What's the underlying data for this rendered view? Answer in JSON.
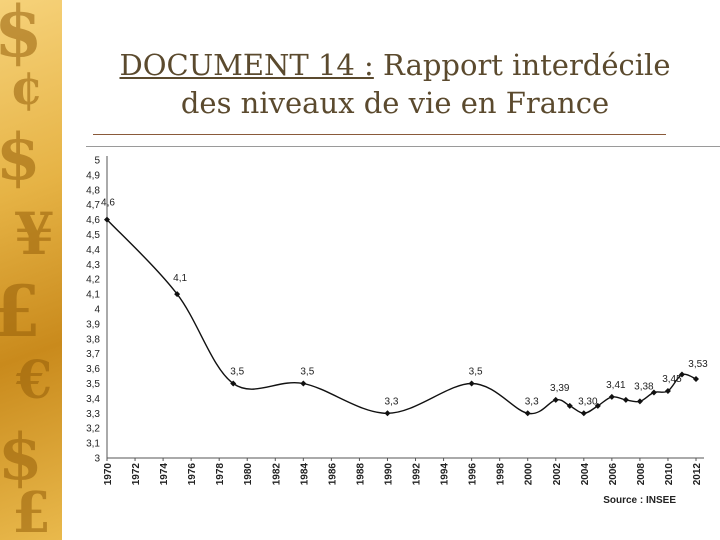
{
  "slide": {
    "title_ref": "DOCUMENT 14 :",
    "title_rest": " Rapport interdécile",
    "title_line2": "des niveaux de vie en France"
  },
  "chart_data": {
    "type": "line",
    "title": "",
    "xlabel": "",
    "ylabel": "",
    "source": "Source : INSEE",
    "ylim": [
      3,
      5
    ],
    "xlim": [
      1970,
      2012
    ],
    "grid": false,
    "yticks": [
      "5",
      "4,9",
      "4,8",
      "4,7",
      "4,6",
      "4,5",
      "4,4",
      "4,3",
      "4,2",
      "4,1",
      "4",
      "3,9",
      "3,8",
      "3,7",
      "3,6",
      "3,5",
      "3,4",
      "3,3",
      "3,2",
      "3,1",
      "3"
    ],
    "xticks": [
      "1970",
      "1972",
      "1974",
      "1976",
      "1978",
      "1980",
      "1982",
      "1984",
      "1986",
      "1988",
      "1990",
      "1992",
      "1994",
      "1996",
      "1998",
      "2000",
      "2002",
      "2004",
      "2006",
      "2008",
      "2010",
      "2012"
    ],
    "series": [
      {
        "points": [
          {
            "x": 1970,
            "y": 4.6
          },
          {
            "x": 1975,
            "y": 4.1
          },
          {
            "x": 1979,
            "y": 3.5
          },
          {
            "x": 1984,
            "y": 3.5
          },
          {
            "x": 1990,
            "y": 3.3
          },
          {
            "x": 1996,
            "y": 3.5
          },
          {
            "x": 2000,
            "y": 3.3
          },
          {
            "x": 2002,
            "y": 3.39
          },
          {
            "x": 2003,
            "y": 3.35
          },
          {
            "x": 2004,
            "y": 3.3
          },
          {
            "x": 2005,
            "y": 3.35
          },
          {
            "x": 2006,
            "y": 3.41
          },
          {
            "x": 2007,
            "y": 3.39
          },
          {
            "x": 2008,
            "y": 3.38
          },
          {
            "x": 2009,
            "y": 3.44
          },
          {
            "x": 2010,
            "y": 3.45
          },
          {
            "x": 2011,
            "y": 3.56
          },
          {
            "x": 2012,
            "y": 3.53
          }
        ]
      }
    ],
    "data_labels": [
      {
        "x": 1970,
        "y": 4.6,
        "text": "4,6"
      },
      {
        "x": 1975,
        "y": 4.1,
        "text": "4,1"
      },
      {
        "x": 1979,
        "y": 3.5,
        "text": "3,5"
      },
      {
        "x": 1984,
        "y": 3.5,
        "text": "3,5"
      },
      {
        "x": 1990,
        "y": 3.3,
        "text": "3,3"
      },
      {
        "x": 1996,
        "y": 3.5,
        "text": "3,5"
      },
      {
        "x": 2000,
        "y": 3.3,
        "text": "3,3"
      },
      {
        "x": 2002,
        "y": 3.39,
        "text": "3,39"
      },
      {
        "x": 2004,
        "y": 3.3,
        "text": "3,30"
      },
      {
        "x": 2006,
        "y": 3.41,
        "text": "3,41"
      },
      {
        "x": 2008,
        "y": 3.38,
        "text": "3,38"
      },
      {
        "x": 2010,
        "y": 3.45,
        "text": "3,45"
      },
      {
        "x": 2012,
        "y": 3.53,
        "text": "3,53"
      }
    ]
  }
}
